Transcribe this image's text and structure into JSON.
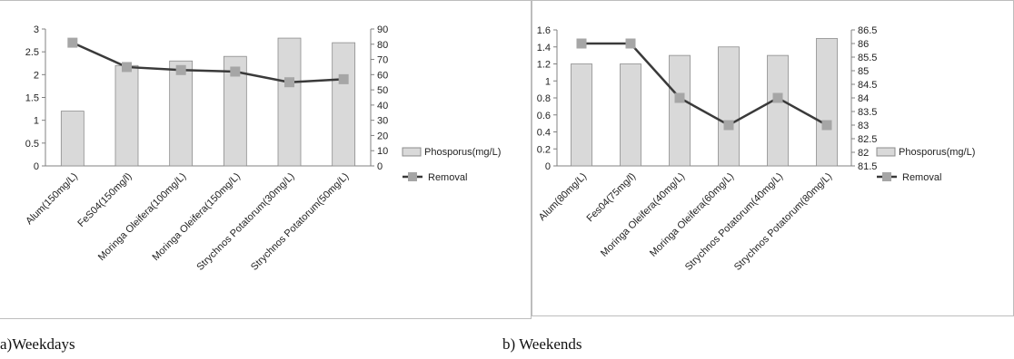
{
  "captions": {
    "a": "a)Weekdays",
    "b": "b) Weekends"
  },
  "legend": {
    "bar_label": "Phosporus(mg/L)",
    "line_label": "Removal"
  },
  "colors": {
    "bar_fill": "#d9d9d9",
    "bar_stroke": "#8c8c8c",
    "line": "#3a3a3a",
    "marker": "#a6a6a6",
    "axis": "#808080"
  },
  "chart_data": [
    {
      "type": "bar",
      "categories": [
        "Alum(150mg/L)",
        "FeS04(150mg/l)",
        "Moringa Oleifera(100mg/L)",
        "Moringa Oleifera(150mg/L)",
        "Strychnos Potatorum(30mg/L)",
        "Strychnos Potatorum(50mg/L)"
      ],
      "series": [
        {
          "name": "Phosporus(mg/L)",
          "type": "bar",
          "axis": "left",
          "values": [
            1.2,
            2.2,
            2.3,
            2.4,
            2.8,
            2.7
          ]
        },
        {
          "name": "Removal",
          "type": "line",
          "axis": "right",
          "values": [
            81,
            65,
            63,
            62,
            55,
            57
          ]
        }
      ],
      "ylim_left": [
        0,
        3
      ],
      "yticks_left": [
        0,
        0.5,
        1,
        1.5,
        2,
        2.5,
        3
      ],
      "yticks_left_labels": [
        "0",
        "0.5",
        "1",
        "1.5",
        "2",
        "2.5",
        "3"
      ],
      "ylim_right": [
        0,
        90
      ],
      "yticks_right": [
        0,
        10,
        20,
        30,
        40,
        50,
        60,
        70,
        80,
        90
      ],
      "yticks_right_labels": [
        "0",
        "10",
        "20",
        "30",
        "40",
        "50",
        "60",
        "70",
        "80",
        "90"
      ],
      "legend_position": "right"
    },
    {
      "type": "bar",
      "categories": [
        "Alum(80mg/L)",
        "Fes04(75mg/l)",
        "Moringa Oleifera(40mg/L)",
        "Moringa Oleifera(60mg/L)",
        "Strychnos Potatorum(40mg/L)",
        "Strychnos Potatorum(80mg/L)"
      ],
      "series": [
        {
          "name": "Phosporus(mg/L)",
          "type": "bar",
          "axis": "left",
          "values": [
            1.2,
            1.2,
            1.3,
            1.4,
            1.3,
            1.5
          ]
        },
        {
          "name": "Removal",
          "type": "line",
          "axis": "right",
          "values": [
            86,
            86,
            84,
            83,
            84,
            83
          ]
        }
      ],
      "ylim_left": [
        0,
        1.6
      ],
      "yticks_left": [
        0,
        0.2,
        0.4,
        0.6,
        0.8,
        1,
        1.2,
        1.4,
        1.6
      ],
      "yticks_left_labels": [
        "0",
        "0.2",
        "0.4",
        "0.6",
        "0.8",
        "1",
        "1.2",
        "1.4",
        "1.6"
      ],
      "ylim_right": [
        81.5,
        86.5
      ],
      "yticks_right": [
        81.5,
        82,
        82.5,
        83,
        83.5,
        84,
        84.5,
        85,
        85.5,
        86,
        86.5
      ],
      "yticks_right_labels": [
        "81.5",
        "82",
        "82.5",
        "83",
        "83.5",
        "84",
        "84.5",
        "85",
        "85.5",
        "86",
        "86.5"
      ],
      "legend_position": "right"
    }
  ]
}
